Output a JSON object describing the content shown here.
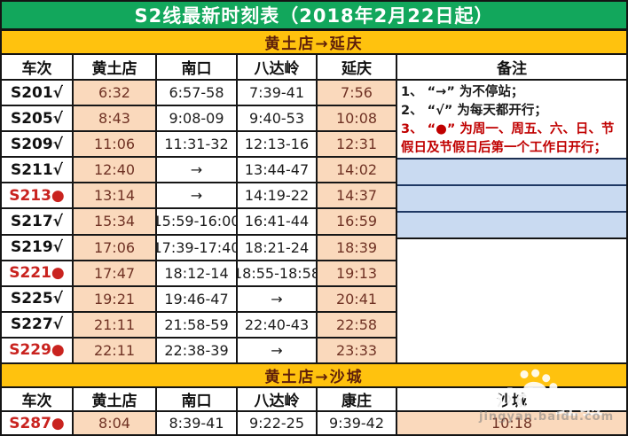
{
  "title": "S2线最新时刻表（2018年2月22日起）",
  "sections": [
    {
      "heading": "黄土店→延庆",
      "columns": [
        "车次",
        "黄土店",
        "南口",
        "八达岭",
        "延庆",
        "备注"
      ],
      "rows": [
        {
          "train": "S201√",
          "red": false,
          "times": [
            "6:32",
            "6:57-58",
            "7:39-41",
            "7:56"
          ]
        },
        {
          "train": "S205√",
          "red": false,
          "times": [
            "8:43",
            "9:08-09",
            "9:40-53",
            "10:08"
          ]
        },
        {
          "train": "S209√",
          "red": false,
          "times": [
            "11:06",
            "11:31-32",
            "12:13-16",
            "12:31"
          ]
        },
        {
          "train": "S211√",
          "red": false,
          "times": [
            "12:40",
            "→",
            "13:44-47",
            "14:02"
          ]
        },
        {
          "train": "S213●",
          "red": true,
          "times": [
            "13:14",
            "→",
            "14:19-22",
            "14:37"
          ]
        },
        {
          "train": "S217√",
          "red": false,
          "times": [
            "15:34",
            "15:59-16:00",
            "16:41-44",
            "16:59"
          ]
        },
        {
          "train": "S219√",
          "red": false,
          "times": [
            "17:06",
            "17:39-17:40",
            "18:21-24",
            "18:39"
          ]
        },
        {
          "train": "S221●",
          "red": true,
          "times": [
            "17:47",
            "18:12-14",
            "18:55-18:58",
            "19:13"
          ]
        },
        {
          "train": "S225√",
          "red": false,
          "times": [
            "19:21",
            "19:46-47",
            "→",
            "20:41"
          ]
        },
        {
          "train": "S227√",
          "red": false,
          "times": [
            "21:11",
            "21:58-59",
            "22:40-43",
            "22:58"
          ]
        },
        {
          "train": "S229●",
          "red": true,
          "times": [
            "22:11",
            "22:38-39",
            "→",
            "23:33"
          ]
        }
      ],
      "notes": [
        {
          "text": "1、 “→” 为不停站；",
          "red": false
        },
        {
          "text": "2、 “√” 为每天都开行；",
          "red": false
        },
        {
          "text": "3、 “●” 为周一、周五、六、日、节假日及节假日后第一个工作日开行；",
          "red": true
        }
      ]
    },
    {
      "heading": "黄土店→沙城",
      "columns": [
        "车次",
        "黄土店",
        "南口",
        "八达岭",
        "康庄",
        "沙城"
      ],
      "rows": [
        {
          "train": "S287●",
          "red": true,
          "times": [
            "8:04",
            "8:39-41",
            "9:22-25",
            "9:39-42",
            "10:18"
          ]
        }
      ]
    }
  ],
  "watermark": {
    "brand": "Baidu",
    "suffix": "经验",
    "url": "jingyan.baidu.com"
  },
  "colors": {
    "title_bg": "#12a75c",
    "section_bg": "#ffc20e",
    "section_text": "#5e1f0b",
    "peach_cell": "#fad9bc",
    "peach_text": "#6f3224",
    "blue_cell": "#c9daf1",
    "navy_line": "#1f3864",
    "red_train": "#c9231f",
    "red_note": "#c00000"
  }
}
